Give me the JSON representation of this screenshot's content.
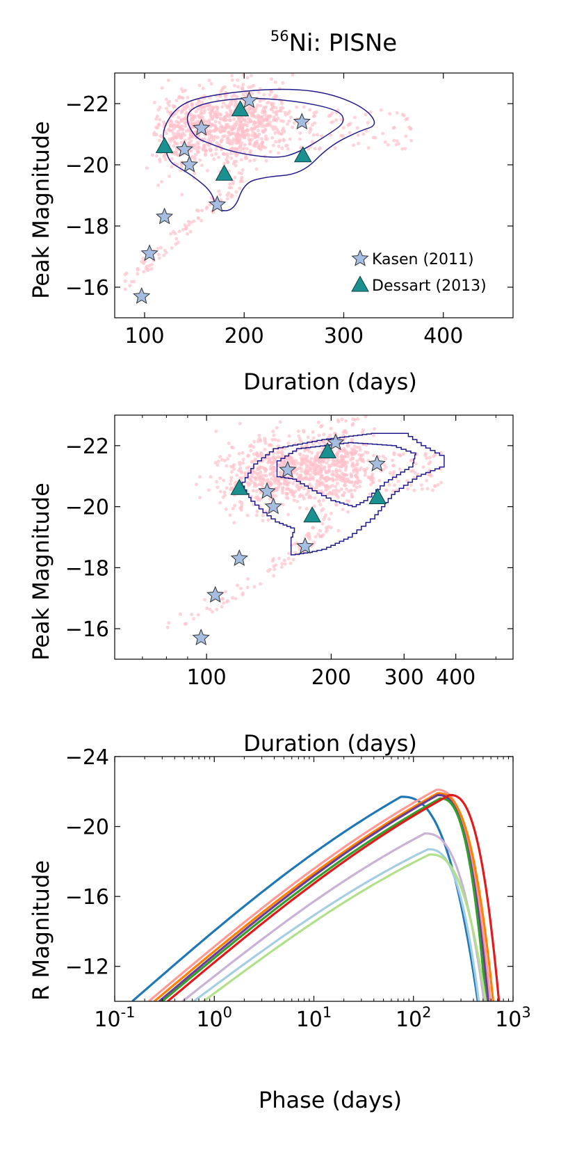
{
  "figure_title": {
    "prefix": "56",
    "main": "Ni: PISNe"
  },
  "chart_data": [
    {
      "id": "p1",
      "type": "scatter",
      "xscale": "linear",
      "xlim": [
        70,
        470
      ],
      "ylim": [
        -15,
        -23
      ],
      "xlabel": "Duration (days)",
      "ylabel": "Peak Magnitude",
      "xticks": [
        100,
        200,
        300,
        400
      ],
      "xtick_labels": [
        "100",
        "200",
        "300",
        "400"
      ],
      "yticks": [
        -16,
        -18,
        -20,
        -22
      ],
      "ytick_labels": [
        "−16",
        "−18",
        "−20",
        "−22"
      ],
      "legend": {
        "position": "lower-right",
        "entries": [
          {
            "label": "Kasen (2011)",
            "marker": "star",
            "color": "#a4bde0"
          },
          {
            "label": "Dessart (2013)",
            "marker": "triangle",
            "color": "#1a9190"
          }
        ]
      },
      "cloud_color": "#ffc0cb",
      "contour_color": "#1f1a8a",
      "kasen": [
        [
          97,
          -15.7
        ],
        [
          105,
          -17.1
        ],
        [
          120,
          -18.3
        ],
        [
          140,
          -20.5
        ],
        [
          145,
          -20.0
        ],
        [
          157,
          -21.2
        ],
        [
          173,
          -18.7
        ],
        [
          205,
          -22.1
        ],
        [
          258,
          -21.4
        ]
      ],
      "dessart": [
        [
          120,
          -20.6
        ],
        [
          180,
          -19.7
        ],
        [
          196,
          -21.8
        ],
        [
          259,
          -20.3
        ]
      ],
      "contour_outer": [
        [
          120,
          -20.6
        ],
        [
          118,
          -21.2
        ],
        [
          135,
          -22.0
        ],
        [
          170,
          -22.3
        ],
        [
          230,
          -22.5
        ],
        [
          280,
          -22.4
        ],
        [
          320,
          -21.9
        ],
        [
          335,
          -21.3
        ],
        [
          315,
          -21.1
        ],
        [
          285,
          -20.6
        ],
        [
          258,
          -19.7
        ],
        [
          220,
          -19.6
        ],
        [
          200,
          -19.4
        ],
        [
          190,
          -18.5
        ],
        [
          172,
          -18.5
        ],
        [
          168,
          -19.1
        ],
        [
          150,
          -19.6
        ],
        [
          135,
          -19.9
        ],
        [
          125,
          -20.1
        ]
      ],
      "contour_inner": [
        [
          150,
          -20.9
        ],
        [
          140,
          -21.6
        ],
        [
          155,
          -22.0
        ],
        [
          200,
          -22.2
        ],
        [
          250,
          -22.1
        ],
        [
          295,
          -21.8
        ],
        [
          302,
          -21.4
        ],
        [
          285,
          -21.0
        ],
        [
          255,
          -20.4
        ],
        [
          232,
          -20.2
        ],
        [
          190,
          -20.4
        ],
        [
          165,
          -20.7
        ]
      ]
    },
    {
      "id": "p2",
      "type": "scatter",
      "xscale": "log",
      "xlim": [
        60,
        550
      ],
      "ylim": [
        -15,
        -23
      ],
      "xlabel": "Duration (days)",
      "ylabel": "Peak Magnitude",
      "xticks": [
        100,
        200,
        300,
        400
      ],
      "xtick_labels": [
        "100",
        "200",
        "300",
        "400"
      ],
      "yticks": [
        -16,
        -18,
        -20,
        -22
      ],
      "ytick_labels": [
        "−16",
        "−18",
        "−20",
        "−22"
      ],
      "cloud_color": "#ffc0cb",
      "contour_color": "#1f1a8a",
      "kasen": [
        [
          97,
          -15.7
        ],
        [
          105,
          -17.1
        ],
        [
          120,
          -18.3
        ],
        [
          140,
          -20.5
        ],
        [
          145,
          -20.0
        ],
        [
          157,
          -21.2
        ],
        [
          173,
          -18.7
        ],
        [
          205,
          -22.1
        ],
        [
          258,
          -21.4
        ]
      ],
      "dessart": [
        [
          120,
          -20.6
        ],
        [
          180,
          -19.7
        ],
        [
          196,
          -21.8
        ],
        [
          259,
          -20.3
        ]
      ],
      "contour_outer": [
        [
          122,
          -20.8
        ],
        [
          130,
          -21.4
        ],
        [
          145,
          -21.9
        ],
        [
          190,
          -22.2
        ],
        [
          250,
          -22.4
        ],
        [
          300,
          -22.4
        ],
        [
          330,
          -22.0
        ],
        [
          375,
          -21.6
        ],
        [
          375,
          -21.3
        ],
        [
          330,
          -21.0
        ],
        [
          285,
          -20.4
        ],
        [
          255,
          -19.6
        ],
        [
          225,
          -19.0
        ],
        [
          195,
          -18.6
        ],
        [
          180,
          -18.5
        ],
        [
          160,
          -18.4
        ],
        [
          160,
          -19.0
        ],
        [
          163,
          -19.3
        ],
        [
          150,
          -19.5
        ],
        [
          140,
          -19.8
        ],
        [
          128,
          -20.3
        ]
      ],
      "contour_inner": [
        [
          148,
          -21.0
        ],
        [
          148,
          -21.5
        ],
        [
          165,
          -21.9
        ],
        [
          220,
          -22.1
        ],
        [
          280,
          -22.0
        ],
        [
          320,
          -21.7
        ],
        [
          315,
          -21.3
        ],
        [
          275,
          -20.8
        ],
        [
          245,
          -20.2
        ],
        [
          230,
          -20.0
        ],
        [
          205,
          -20.2
        ],
        [
          180,
          -20.6
        ],
        [
          165,
          -20.9
        ]
      ]
    },
    {
      "id": "p3",
      "type": "line",
      "xscale": "log",
      "xlim": [
        0.1,
        1000
      ],
      "ylim": [
        -10,
        -24
      ],
      "xlabel": "Phase (days)",
      "ylabel": "R Magnitude",
      "xticks": [
        0.1,
        1,
        10,
        100,
        1000
      ],
      "xtick_labels": [
        {
          "base": "10",
          "exp": "-1"
        },
        {
          "base": "10",
          "exp": "0"
        },
        {
          "base": "10",
          "exp": "1"
        },
        {
          "base": "10",
          "exp": "2"
        },
        {
          "base": "10",
          "exp": "3"
        }
      ],
      "yticks": [
        -12,
        -16,
        -20,
        -24
      ],
      "ytick_labels": [
        "−12",
        "−16",
        "−20",
        "−24"
      ],
      "series": [
        {
          "name": "c1",
          "color": "#1f78b4",
          "start": 0.15,
          "peak_t": 75,
          "peak_mag": -21.7,
          "drop_t": 450
        },
        {
          "name": "c2",
          "color": "#fb9a99",
          "start": 0.22,
          "peak_t": 170,
          "peak_mag": -22.1,
          "drop_t": 600
        },
        {
          "name": "c3",
          "color": "#ff7f00",
          "start": 0.25,
          "peak_t": 175,
          "peak_mag": -21.9,
          "drop_t": 640
        },
        {
          "name": "c4",
          "color": "#6a3d9a",
          "start": 0.28,
          "peak_t": 175,
          "peak_mag": -21.8,
          "drop_t": 570
        },
        {
          "name": "c5",
          "color": "#33a02c",
          "start": 0.3,
          "peak_t": 185,
          "peak_mag": -21.6,
          "drop_t": 540
        },
        {
          "name": "c6",
          "color": "#e31a1c",
          "start": 0.34,
          "peak_t": 230,
          "peak_mag": -21.8,
          "drop_t": 730
        },
        {
          "name": "c7",
          "color": "#cab2d6",
          "start": 0.48,
          "peak_t": 130,
          "peak_mag": -19.6,
          "drop_t": 520
        },
        {
          "name": "c8",
          "color": "#a6cee3",
          "start": 0.62,
          "peak_t": 140,
          "peak_mag": -18.7,
          "drop_t": 460
        },
        {
          "name": "c9",
          "color": "#b2df8a",
          "start": 0.78,
          "peak_t": 145,
          "peak_mag": -18.4,
          "drop_t": 540
        }
      ]
    }
  ]
}
